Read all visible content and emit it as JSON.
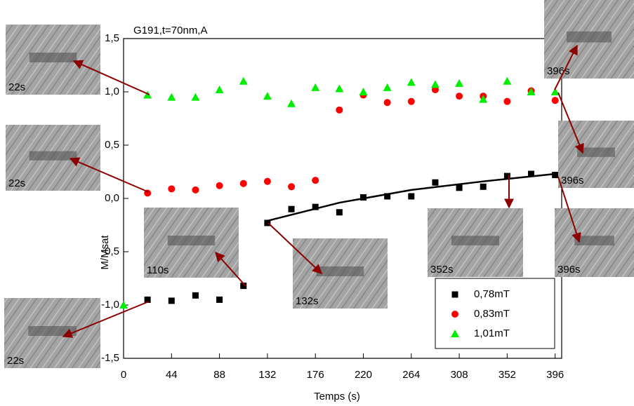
{
  "chart_data": {
    "type": "scatter",
    "title": "G191,t=70nm,A",
    "x_label": "Temps (s)",
    "y_label": "M/Msat",
    "xlim": [
      0,
      402
    ],
    "ylim": [
      -1.5,
      1.5
    ],
    "xticks": [
      0,
      44,
      88,
      132,
      176,
      220,
      264,
      308,
      352,
      396
    ],
    "yticks": [
      {
        "value": -1.5,
        "label": "-1,5"
      },
      {
        "value": -1.0,
        "label": "-1,0"
      },
      {
        "value": -0.5,
        "label": "-0,5"
      },
      {
        "value": 0.0,
        "label": "0,0"
      },
      {
        "value": 0.5,
        "label": "0,5"
      },
      {
        "value": 1.0,
        "label": "1,0"
      },
      {
        "value": 1.5,
        "label": "1,5"
      }
    ],
    "legend_position": "lower right",
    "series": [
      {
        "name": "0,78mT",
        "color": "#000000",
        "marker": "square",
        "x": [
          22,
          44,
          66,
          88,
          110,
          132,
          154,
          176,
          198,
          220,
          242,
          264,
          286,
          308,
          330,
          352,
          374,
          396
        ],
        "values": [
          -0.95,
          -0.96,
          -0.91,
          -0.95,
          -0.82,
          -0.23,
          -0.1,
          -0.08,
          -0.13,
          0.01,
          0.02,
          0.02,
          0.15,
          0.1,
          0.11,
          0.21,
          0.23,
          0.22
        ]
      },
      {
        "name": "0,83mT",
        "color": "#ff0000",
        "marker": "circle",
        "x": [
          22,
          44,
          66,
          88,
          110,
          132,
          154,
          176,
          198,
          220,
          242,
          264,
          286,
          308,
          330,
          352,
          374,
          396
        ],
        "values": [
          0.05,
          0.09,
          0.08,
          0.12,
          0.14,
          0.16,
          0.11,
          0.17,
          0.83,
          0.97,
          0.9,
          0.91,
          1.02,
          0.96,
          0.96,
          0.91,
          1.01,
          0.92
        ]
      },
      {
        "name": "1,01mT",
        "color": "#00ee00",
        "marker": "triangle",
        "x": [
          0,
          22,
          44,
          66,
          88,
          110,
          132,
          154,
          176,
          198,
          220,
          242,
          264,
          286,
          308,
          330,
          352,
          374,
          396
        ],
        "values": [
          -1.0,
          0.97,
          0.95,
          0.95,
          1.02,
          1.1,
          0.96,
          0.89,
          1.04,
          1.03,
          1.0,
          1.04,
          1.09,
          1.07,
          1.08,
          0.93,
          1.1,
          1.0,
          1.0
        ]
      }
    ],
    "fit": {
      "color": "#000000",
      "x": [
        132,
        198,
        264,
        330,
        396
      ],
      "values": [
        -0.21,
        -0.04,
        0.08,
        0.16,
        0.23
      ]
    },
    "insets": [
      {
        "label": "22s"
      },
      {
        "label": "22s"
      },
      {
        "label": "22s"
      },
      {
        "label": "110s"
      },
      {
        "label": "132s"
      },
      {
        "label": "352s"
      },
      {
        "label": "396s"
      },
      {
        "label": "396s"
      },
      {
        "label": "396s"
      }
    ]
  }
}
